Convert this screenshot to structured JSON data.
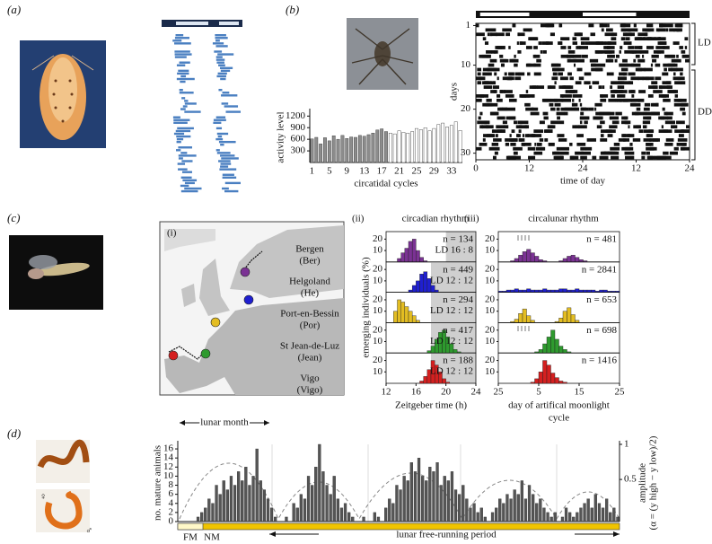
{
  "figure_labels": [
    "(a)",
    "(b)",
    "(c)",
    "(d)"
  ],
  "map": {
    "label": "(i)",
    "sites": [
      {
        "name": "Bergen",
        "code": "(Ber)",
        "color": "#7b3294"
      },
      {
        "name": "Helgoland",
        "code": "(He)",
        "color": "#1f1fd0"
      },
      {
        "name": "Port-en-Bessin",
        "code": "(Por)",
        "color": "#e3bd22"
      },
      {
        "name": "St Jean-de-Luz",
        "code": "(Jean)",
        "color": "#2e9a2e"
      },
      {
        "name": "Vigo",
        "code": "(Vigo)",
        "color": "#d42020"
      }
    ]
  },
  "symbols": {
    "female": "♀",
    "male": "♂"
  },
  "chart_data": [
    {
      "type": "bar",
      "ylabel": "activity level",
      "xlabel": "circatidal cycles",
      "categories": [
        1,
        null,
        null,
        null,
        5,
        null,
        null,
        null,
        9,
        null,
        null,
        null,
        13,
        null,
        null,
        null,
        17,
        null,
        null,
        null,
        21,
        null,
        null,
        null,
        25,
        null,
        null,
        null,
        29,
        null,
        null,
        null,
        33,
        null,
        null
      ],
      "series": [
        {
          "color": "#8c8c8c",
          "values": [
            610,
            650,
            480,
            640,
            560,
            690,
            600,
            700,
            620,
            660,
            650,
            700,
            680,
            720,
            760,
            840,
            870,
            800,
            null,
            null,
            null,
            null,
            null,
            null,
            null,
            null,
            null,
            null,
            null,
            null,
            null,
            null,
            null,
            null,
            null
          ]
        },
        {
          "color": "#ffffff",
          "values": [
            null,
            null,
            null,
            null,
            null,
            null,
            null,
            null,
            null,
            null,
            null,
            null,
            null,
            null,
            null,
            null,
            null,
            null,
            760,
            740,
            820,
            780,
            760,
            800,
            880,
            850,
            900,
            820,
            880,
            980,
            1020,
            920,
            960,
            1050,
            830
          ]
        }
      ],
      "ylim": [
        0,
        1300
      ],
      "yticks": [
        300,
        600,
        900,
        1200
      ]
    },
    {
      "type": "actogram",
      "ylabel": "days",
      "xlabel": "time of day",
      "xlim": [
        0,
        48
      ],
      "xticks": [
        0,
        12,
        24,
        {
          "value": 36,
          "label": "12"
        },
        {
          "value": 48,
          "label": "24"
        }
      ],
      "ylim": [
        0.5,
        31.5
      ],
      "yticks": [
        1,
        10,
        20,
        30
      ],
      "annotations": [
        "LD",
        "DD"
      ]
    },
    {
      "type": "histogram",
      "panel_label": "(ii)",
      "title": "circadian rhythm",
      "xlabel": [
        "Zeitgeber time (h)"
      ],
      "ylabel": "emerging individuals (%)",
      "xlim": [
        12,
        24
      ],
      "xticks": [
        12,
        16,
        20,
        24
      ],
      "ylim": [
        0,
        25
      ],
      "yticks": [
        10,
        20
      ],
      "bins": [
        13,
        13.5,
        14,
        14.5,
        15,
        15.5,
        16,
        16.5,
        17,
        17.5,
        18,
        18.5,
        19,
        19.5,
        20,
        20.5,
        21,
        21.5,
        22
      ],
      "series": [
        {
          "color": "#7b3294",
          "values": [
            0,
            3,
            8,
            12,
            18,
            20,
            10,
            4,
            1,
            0,
            0,
            0,
            0,
            0,
            0,
            0,
            0,
            0
          ],
          "n_label": "n = 134",
          "regime": "LD 16 : 8",
          "dark": [
            20,
            24
          ]
        },
        {
          "color": "#1f1fd0",
          "values": [
            0,
            0,
            0,
            0,
            2,
            6,
            10,
            16,
            18,
            12,
            6,
            2,
            0,
            0,
            0,
            0,
            0,
            0
          ],
          "n_label": "n = 449",
          "regime": "LD 12 : 12",
          "dark": [
            18,
            24
          ]
        },
        {
          "color": "#e3bd22",
          "values": [
            10,
            20,
            18,
            14,
            10,
            6,
            2,
            0,
            0,
            0,
            0,
            0,
            0,
            0,
            0,
            0,
            0,
            0
          ],
          "n_label": "n = 294",
          "regime": "LD 12 : 12",
          "dark": [
            18,
            24
          ]
        },
        {
          "color": "#2e9a2e",
          "values": [
            0,
            0,
            0,
            0,
            0,
            0,
            0,
            0,
            0,
            2,
            6,
            12,
            18,
            20,
            14,
            8,
            3,
            1
          ],
          "n_label": "n = 417",
          "regime": "LD 12 : 12",
          "dark": [
            18,
            24
          ]
        },
        {
          "color": "#d42020",
          "values": [
            0,
            0,
            0,
            0,
            0,
            0,
            0,
            2,
            6,
            12,
            20,
            16,
            10,
            4,
            1,
            0,
            0,
            0
          ],
          "n_label": "n = 188",
          "regime": "LD 12 : 12",
          "dark": [
            18,
            24
          ]
        }
      ]
    },
    {
      "type": "histogram",
      "panel_label": "(iii)",
      "title": "circalunar rhythm",
      "xlabel": [
        "day of artifical moonlight",
        "cycle"
      ],
      "xlim": [
        0,
        30
      ],
      "xticks": [
        {
          "value": 0,
          "label": "25"
        },
        {
          "value": 10,
          "label": "5"
        },
        {
          "value": 20,
          "label": "15"
        },
        {
          "value": 30,
          "label": "25"
        }
      ],
      "ylim": [
        0,
        25
      ],
      "yticks": [
        10,
        20
      ],
      "bins": [
        0,
        1,
        2,
        3,
        4,
        5,
        6,
        7,
        8,
        9,
        10,
        11,
        12,
        13,
        14,
        15,
        16,
        17,
        18,
        19,
        20,
        21,
        22,
        23,
        24,
        25,
        26,
        27,
        28,
        29,
        30
      ],
      "series": [
        {
          "color": "#7b3294",
          "values": [
            0,
            0,
            0,
            1,
            3,
            6,
            9,
            11,
            8,
            5,
            2,
            1,
            0,
            0,
            0,
            1,
            3,
            5,
            6,
            4,
            2,
            1,
            0,
            0,
            0,
            0,
            0,
            0,
            0,
            0
          ],
          "n_label": "n = 481"
        },
        {
          "color": "#1f1fd0",
          "values": [
            1,
            1,
            2,
            2,
            3,
            2,
            2,
            3,
            2,
            2,
            2,
            3,
            2,
            2,
            2,
            3,
            3,
            2,
            2,
            3,
            2,
            2,
            2,
            2,
            1,
            2,
            2,
            1,
            1,
            1
          ],
          "n_label": "n = 2841"
        },
        {
          "color": "#e3bd22",
          "values": [
            0,
            0,
            0,
            1,
            3,
            8,
            12,
            6,
            2,
            0,
            0,
            0,
            0,
            0,
            1,
            4,
            10,
            13,
            7,
            2,
            0,
            0,
            0,
            0,
            0,
            0,
            0,
            0,
            0,
            0
          ],
          "n_label": "n = 653"
        },
        {
          "color": "#2e9a2e",
          "values": [
            0,
            0,
            0,
            0,
            0,
            0,
            0,
            0,
            0,
            1,
            3,
            8,
            14,
            20,
            12,
            6,
            3,
            1,
            0,
            0,
            0,
            0,
            0,
            0,
            0,
            0,
            0,
            0,
            0,
            0
          ],
          "n_label": "n = 698"
        },
        {
          "color": "#d42020",
          "values": [
            0,
            0,
            0,
            0,
            0,
            0,
            0,
            0,
            1,
            4,
            10,
            20,
            16,
            9,
            5,
            2,
            1,
            0,
            0,
            0,
            0,
            0,
            0,
            0,
            0,
            0,
            0,
            0,
            0,
            0
          ],
          "n_label": "n = 1416"
        }
      ]
    },
    {
      "type": "bar",
      "ylabel": "no. mature animals",
      "y2label": "amplitude",
      "y2label_formula": "(α = (y high − y low)/2)",
      "color": "#555555",
      "values": [
        0,
        0,
        0,
        0,
        0,
        1,
        2,
        3,
        5,
        4,
        8,
        6,
        9,
        7,
        10,
        8,
        11,
        9,
        12,
        8,
        10,
        16,
        9,
        7,
        5,
        3,
        1,
        0,
        0,
        1,
        0,
        4,
        3,
        6,
        5,
        10,
        8,
        12,
        17,
        11,
        8,
        6,
        10,
        5,
        3,
        4,
        2,
        1,
        0,
        0,
        1,
        0,
        0,
        2,
        1,
        0,
        3,
        5,
        4,
        8,
        7,
        10,
        9,
        13,
        11,
        14,
        10,
        9,
        12,
        11,
        13,
        8,
        10,
        9,
        11,
        7,
        6,
        8,
        5,
        3,
        4,
        2,
        3,
        1,
        0,
        2,
        3,
        5,
        4,
        6,
        5,
        7,
        6,
        9,
        5,
        8,
        6,
        4,
        5,
        3,
        2,
        1,
        2,
        0,
        1,
        3,
        2,
        1,
        2,
        3,
        4,
        5,
        3,
        6,
        4,
        3,
        5,
        2,
        3,
        1
      ],
      "ylim": [
        0,
        17
      ],
      "yticks": [
        0,
        2,
        4,
        6,
        8,
        10,
        12,
        14,
        16
      ],
      "y2lim": [
        -0.1,
        1
      ],
      "y2ticks": [
        0.5,
        1
      ],
      "annotations": {
        "lunar_month": "lunar month",
        "full_moon": "FM",
        "new_moon": "NM",
        "free_run": "lunar free-running period"
      }
    }
  ]
}
